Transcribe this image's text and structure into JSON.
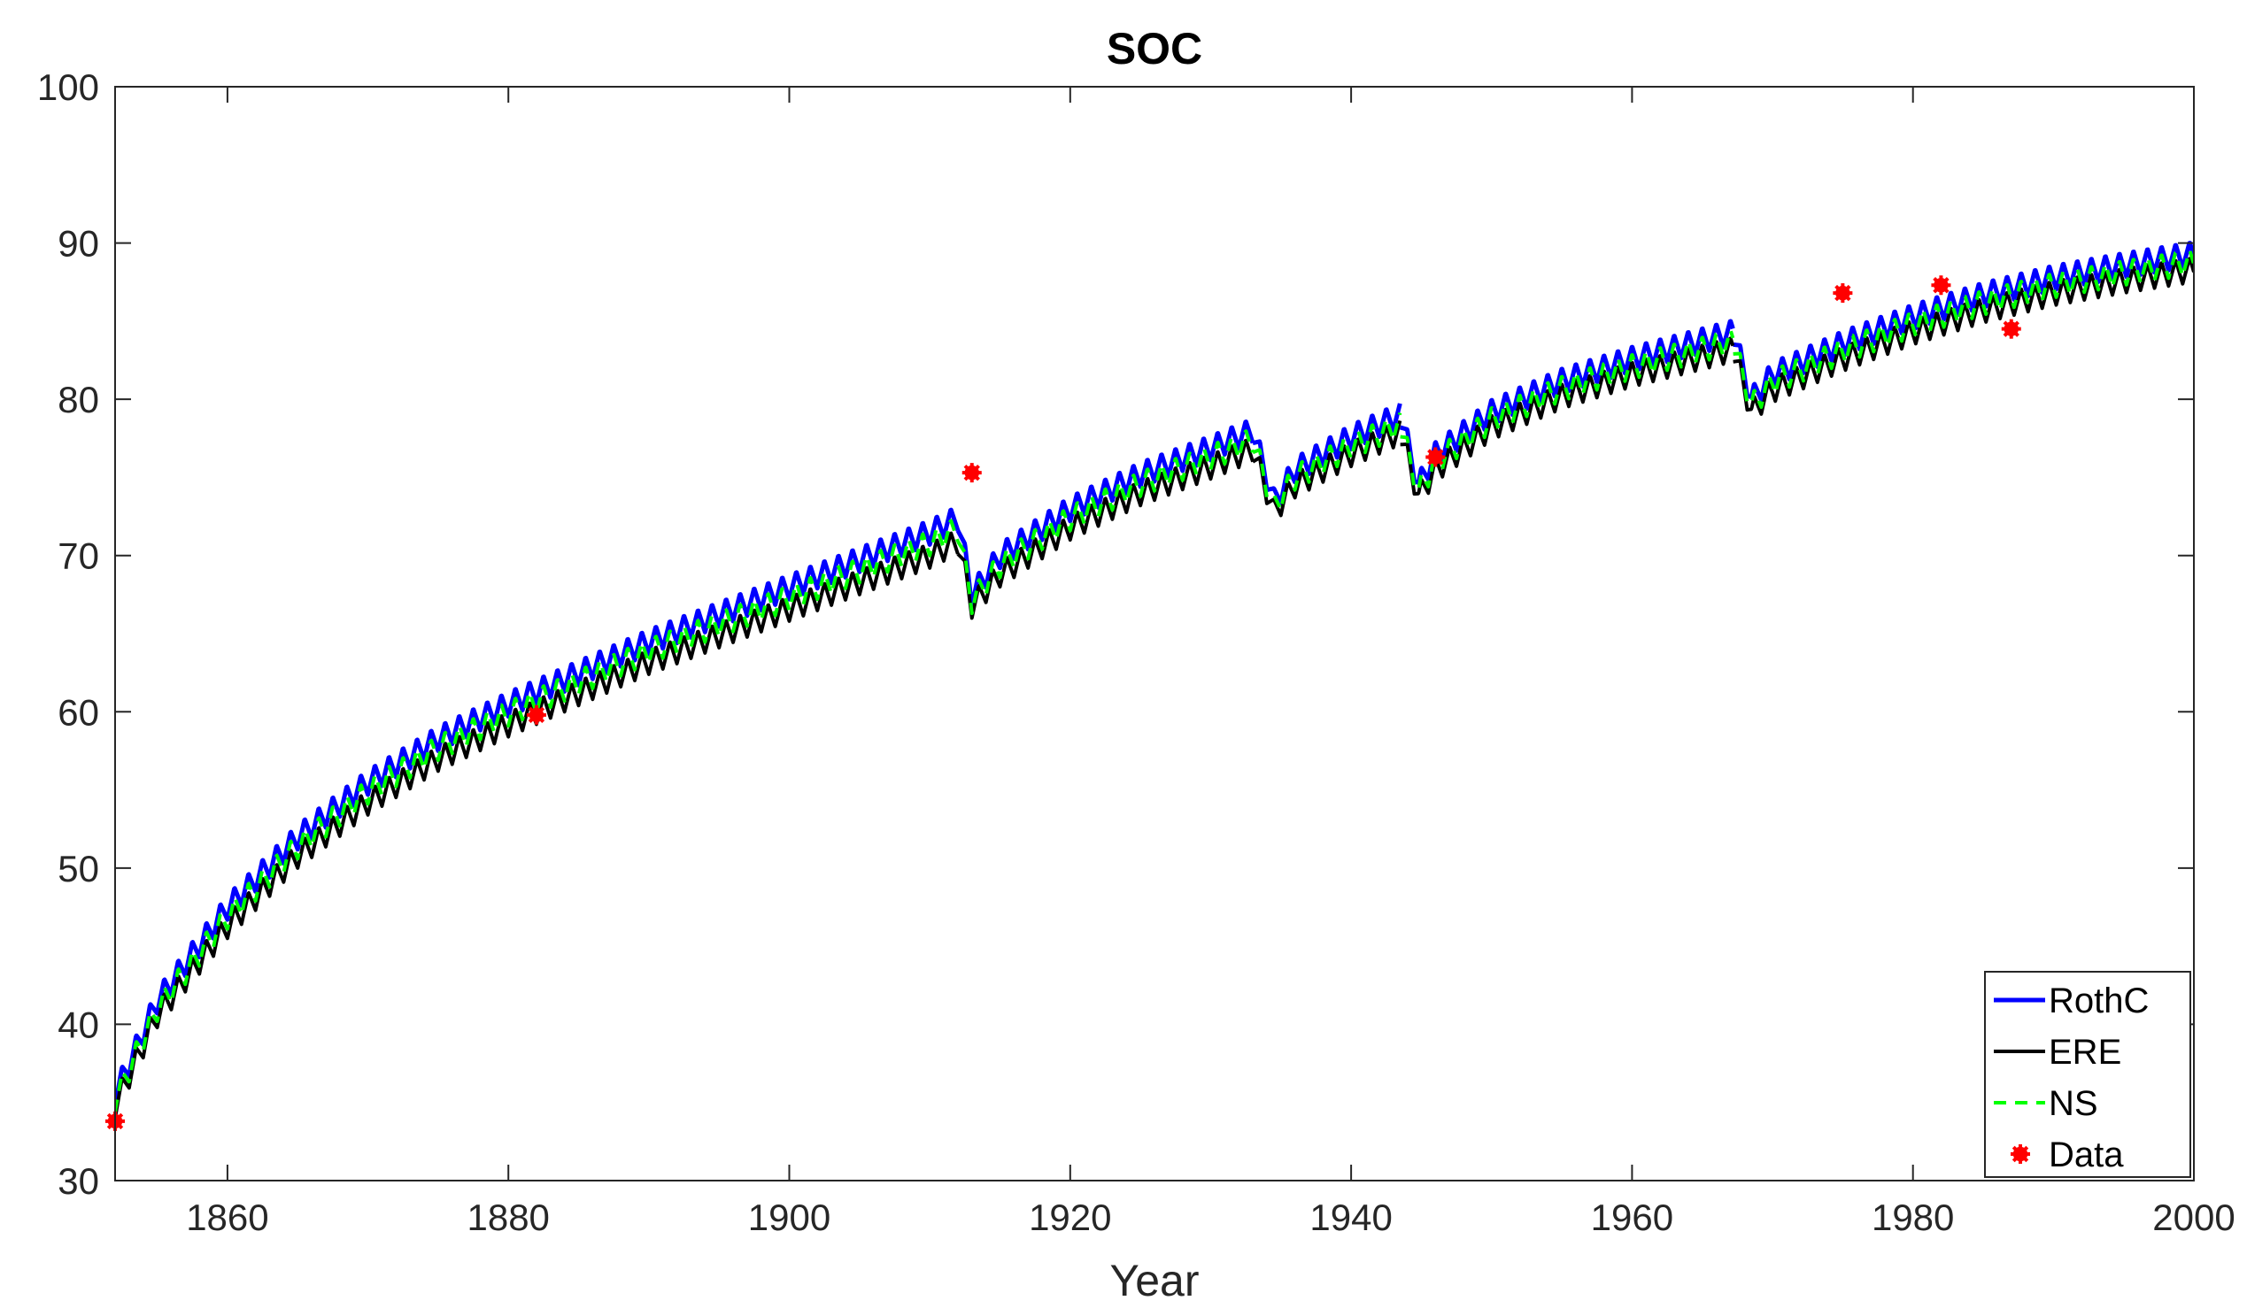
{
  "colors": {
    "RothC": "#0000ff",
    "ERE": "#000000",
    "NS": "#00ff00",
    "Data": "#ff0000",
    "axes": "#262626",
    "grid": "#262626"
  },
  "chart_data": {
    "type": "line",
    "title": "SOC",
    "xlabel": "Year",
    "ylabel": "",
    "xlim": [
      1852,
      2000
    ],
    "ylim": [
      30,
      100
    ],
    "xticks": [
      1860,
      1880,
      1900,
      1920,
      1940,
      1960,
      1980,
      2000
    ],
    "yticks": [
      30,
      40,
      50,
      60,
      70,
      80,
      90,
      100
    ],
    "legend_position": "bottom-right",
    "legend": [
      "RothC",
      "ERE",
      "NS",
      "Data"
    ],
    "series": [
      {
        "name": "RothC",
        "style": "solid",
        "oscillation": {
          "period_years": 1,
          "amplitude": 1.6
        },
        "segments": [
          {
            "x": [
              1852,
              1855,
              1860,
              1865,
              1870,
              1875,
              1880,
              1890,
              1900,
              1910,
              1912
            ],
            "y": [
              35.5,
              41.5,
              47.5,
              52.0,
              55.5,
              58.3,
              60.5,
              64.5,
              68.0,
              71.5,
              72.4
            ]
          },
          {
            "x": [
              1912,
              1913,
              1915,
              1920,
              1925,
              1930,
              1933
            ],
            "y": [
              72.4,
              67.5,
              70.0,
              73.0,
              75.2,
              76.9,
              78.0
            ]
          },
          {
            "x": [
              1933,
              1934.5,
              1936,
              1940,
              1943.5
            ],
            "y": [
              78.0,
              73.5,
              75.5,
              77.6,
              79.0
            ]
          },
          {
            "x": [
              1943.5,
              1944.8,
              1946,
              1950,
              1955,
              1960,
              1967.2
            ],
            "y": [
              79.0,
              74.5,
              76.5,
              79.2,
              81.2,
              82.6,
              84.3
            ]
          },
          {
            "x": [
              1967.2,
              1968.5,
              1970,
              1975,
              1980,
              1985,
              1990,
              1995,
              2000
            ],
            "y": [
              84.3,
              80.0,
              81.6,
              83.6,
              85.3,
              86.7,
              87.8,
              88.6,
              89.3
            ]
          }
        ]
      },
      {
        "name": "ERE",
        "style": "solid",
        "oscillation": {
          "period_years": 1,
          "amplitude": 1.6
        },
        "segments": [
          {
            "x": [
              1852,
              1855,
              1860,
              1865,
              1870,
              1875,
              1880,
              1890,
              1900,
              1910,
              1912
            ],
            "y": [
              34.8,
              40.6,
              46.3,
              50.8,
              54.2,
              57.0,
              59.2,
              63.2,
              66.6,
              70.0,
              70.9
            ]
          },
          {
            "x": [
              1912,
              1913,
              1915,
              1920,
              1925,
              1930,
              1933
            ],
            "y": [
              70.9,
              66.8,
              68.8,
              71.8,
              74.0,
              75.7,
              76.8
            ]
          },
          {
            "x": [
              1933,
              1934.5,
              1936,
              1940,
              1943.5
            ],
            "y": [
              76.8,
              72.8,
              74.5,
              76.5,
              77.9
            ]
          },
          {
            "x": [
              1943.5,
              1944.8,
              1946,
              1950,
              1955,
              1960,
              1967.2
            ],
            "y": [
              77.9,
              73.8,
              75.5,
              78.2,
              80.2,
              81.6,
              83.2
            ]
          },
          {
            "x": [
              1967.2,
              1968.5,
              1970,
              1975,
              1980,
              1985,
              1990,
              1995,
              2000
            ],
            "y": [
              83.2,
              79.2,
              80.6,
              82.6,
              84.3,
              85.7,
              86.8,
              87.6,
              88.3
            ]
          }
        ]
      },
      {
        "name": "NS",
        "style": "dashed",
        "oscillation": {
          "period_years": 1,
          "amplitude": 1.6
        },
        "segments": [
          {
            "x": [
              1852,
              1855,
              1860,
              1865,
              1870,
              1875,
              1880,
              1890,
              1900,
              1910,
              1912
            ],
            "y": [
              35.2,
              41.0,
              46.9,
              51.4,
              54.9,
              57.7,
              59.9,
              63.9,
              67.3,
              70.8,
              71.7
            ]
          },
          {
            "x": [
              1912,
              1913,
              1915,
              1920,
              1925,
              1930,
              1933
            ],
            "y": [
              71.7,
              67.1,
              69.4,
              72.4,
              74.6,
              76.3,
              77.4
            ]
          },
          {
            "x": [
              1933,
              1934.5,
              1936,
              1940,
              1943.5
            ],
            "y": [
              77.4,
              73.1,
              75.0,
              77.0,
              78.4
            ]
          },
          {
            "x": [
              1943.5,
              1944.8,
              1946,
              1950,
              1955,
              1960,
              1967.2
            ],
            "y": [
              78.4,
              74.1,
              76.0,
              78.7,
              80.7,
              82.1,
              83.7
            ]
          },
          {
            "x": [
              1967.2,
              1968.5,
              1970,
              1975,
              1980,
              1985,
              1990,
              1995,
              2000
            ],
            "y": [
              83.7,
              79.6,
              81.1,
              83.1,
              84.8,
              86.2,
              87.3,
              88.1,
              88.8
            ]
          }
        ]
      }
    ],
    "scatter": {
      "name": "Data",
      "x": [
        1852,
        1882,
        1913,
        1946,
        1975,
        1982,
        1987
      ],
      "y": [
        33.8,
        59.8,
        75.3,
        76.3,
        86.8,
        87.3,
        84.5
      ]
    }
  }
}
